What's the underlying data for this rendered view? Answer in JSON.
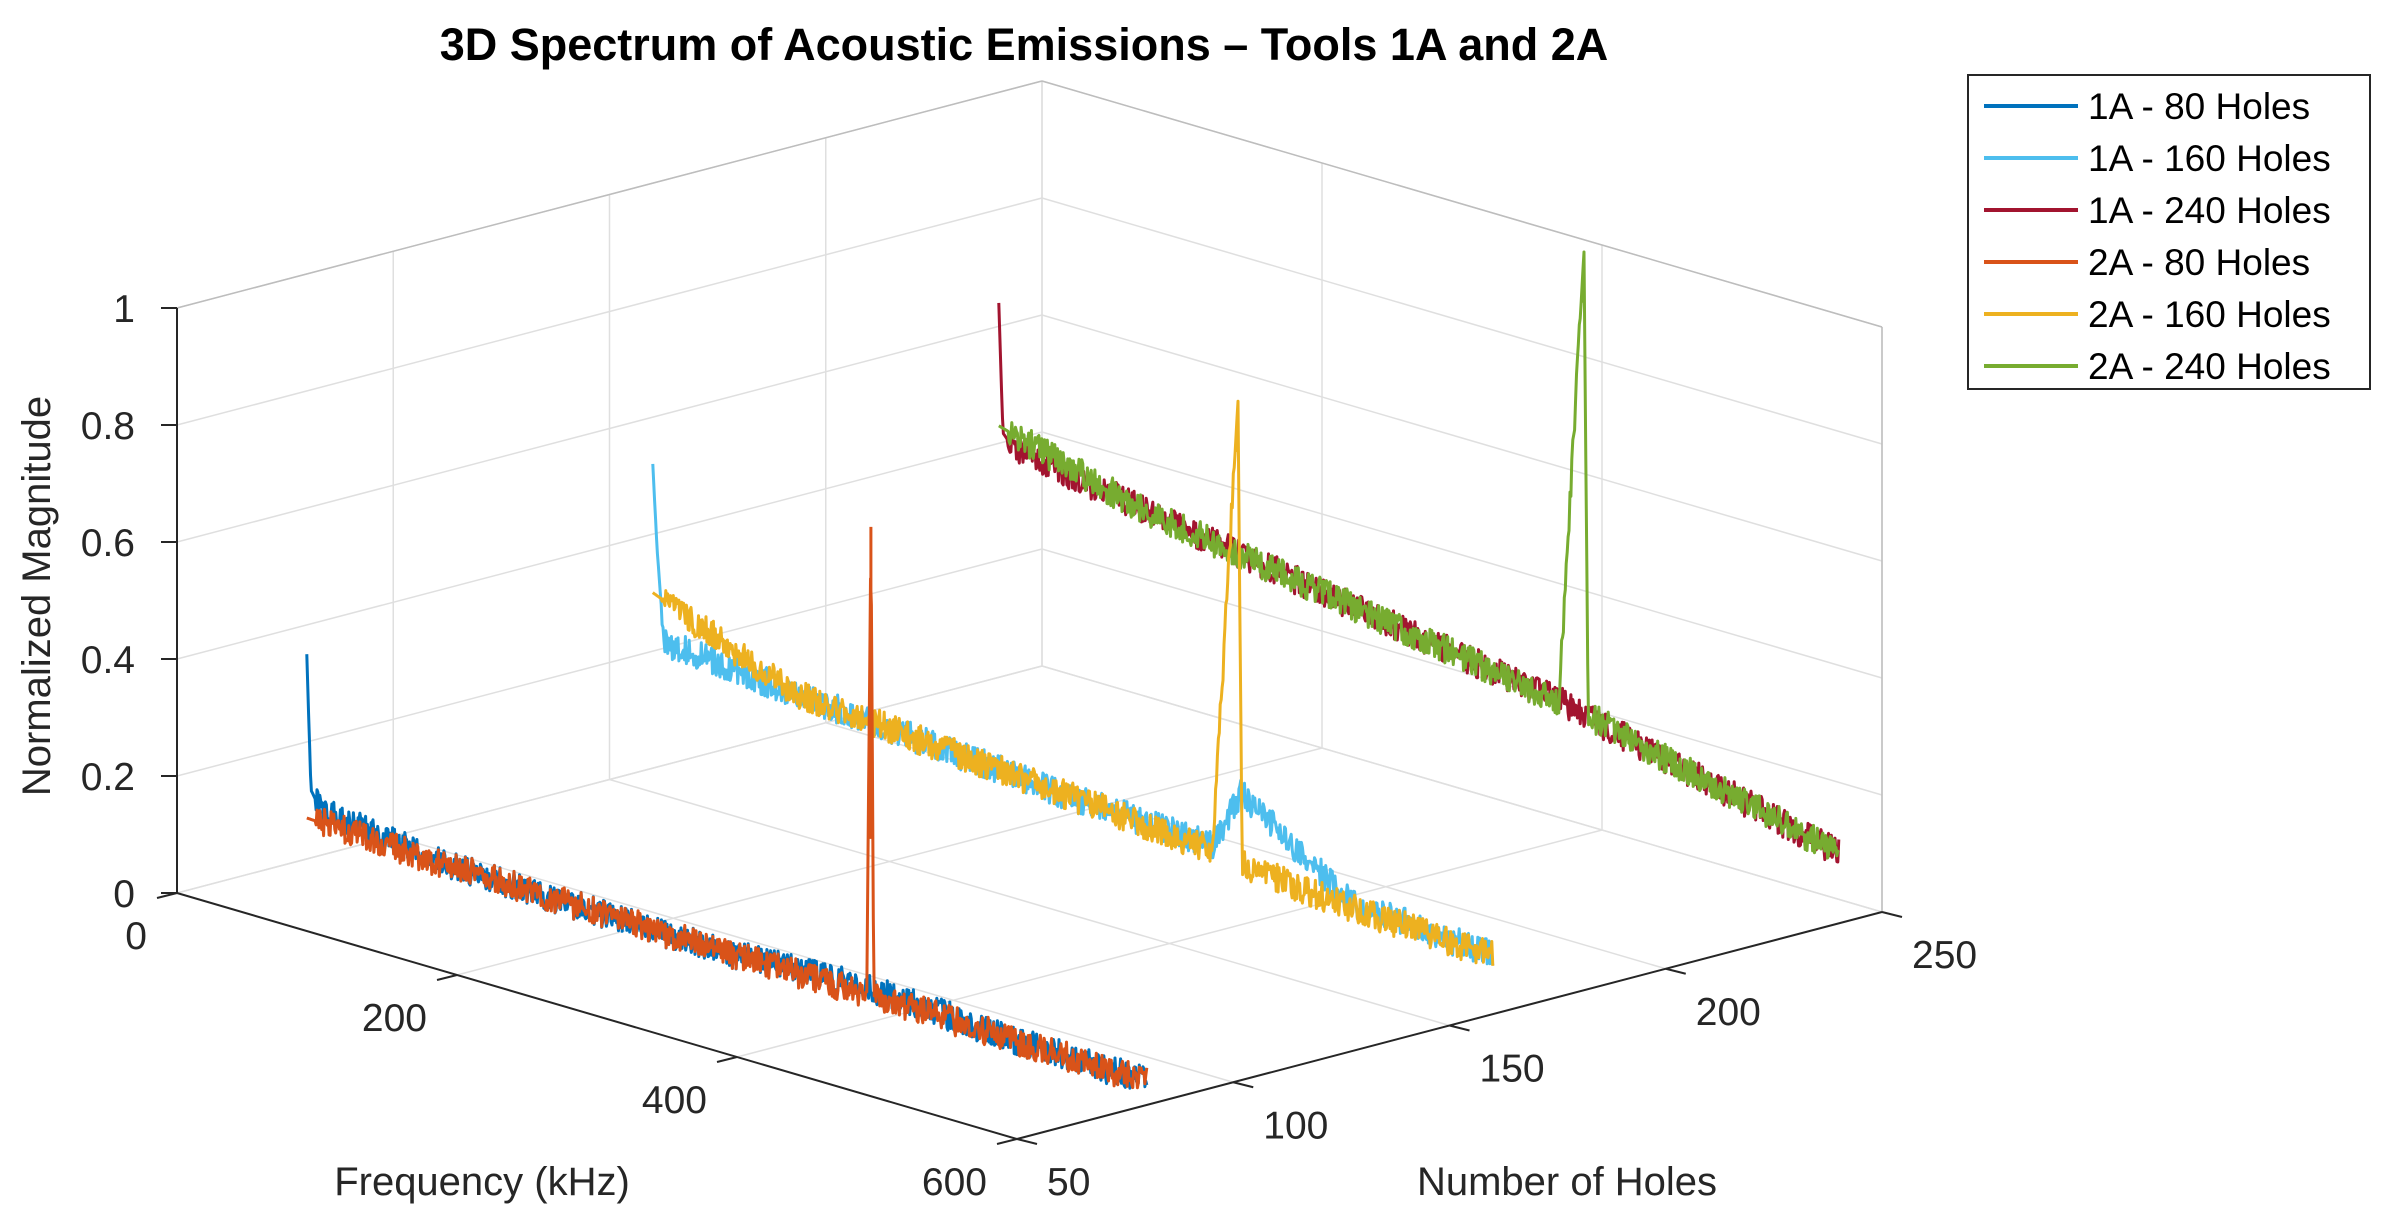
{
  "chart_data": {
    "type": "line",
    "projection": "3d",
    "title": "3D Spectrum of Acoustic Emissions – Tools 1A and 2A",
    "xlabel": "Frequency (kHz)",
    "ylabel": "Number of Holes",
    "zlabel": "Normalized Magnitude",
    "xlim": [
      0,
      600
    ],
    "ylim": [
      50,
      250
    ],
    "zlim": [
      0,
      1
    ],
    "xticks": [
      "0",
      "200",
      "400",
      "600"
    ],
    "yticks": [
      "50",
      "100",
      "150",
      "200",
      "250"
    ],
    "zticks": [
      "0",
      "0.2",
      "0.4",
      "0.6",
      "0.8",
      "1"
    ],
    "grid": true,
    "legend_position": "top-right outside",
    "series": [
      {
        "name": "1A - 80 Holes",
        "color": "#0072BD",
        "holes": 80,
        "spectrum": [
          [
            0,
            0.35
          ],
          [
            3,
            0.12
          ],
          [
            10,
            0.09
          ],
          [
            100,
            0.06
          ],
          [
            200,
            0.055
          ],
          [
            300,
            0.05
          ],
          [
            390,
            0.06
          ],
          [
            420,
            0.06
          ],
          [
            500,
            0.045
          ],
          [
            600,
            0.04
          ]
        ]
      },
      {
        "name": "1A - 160 Holes",
        "color": "#4DBEEE",
        "holes": 160,
        "spectrum": [
          [
            0,
            0.52
          ],
          [
            3,
            0.38
          ],
          [
            8,
            0.22
          ],
          [
            100,
            0.2
          ],
          [
            200,
            0.18
          ],
          [
            300,
            0.16
          ],
          [
            400,
            0.15
          ],
          [
            420,
            0.25
          ],
          [
            500,
            0.12
          ],
          [
            600,
            0.1
          ]
        ]
      },
      {
        "name": "1A - 240 Holes",
        "color": "#A2142F",
        "holes": 240,
        "spectrum": [
          [
            0,
            0.64
          ],
          [
            3,
            0.42
          ],
          [
            10,
            0.4
          ],
          [
            100,
            0.36
          ],
          [
            200,
            0.32
          ],
          [
            300,
            0.28
          ],
          [
            400,
            0.24
          ],
          [
            500,
            0.18
          ],
          [
            600,
            0.12
          ]
        ]
      },
      {
        "name": "2A - 80 Holes",
        "color": "#D95319",
        "holes": 80,
        "spectrum": [
          [
            0,
            0.07
          ],
          [
            100,
            0.06
          ],
          [
            200,
            0.055
          ],
          [
            300,
            0.05
          ],
          [
            400,
            0.05
          ],
          [
            403,
            0.85
          ],
          [
            405,
            0.05
          ],
          [
            500,
            0.045
          ],
          [
            600,
            0.04
          ]
        ]
      },
      {
        "name": "2A - 160 Holes",
        "color": "#EDB120",
        "holes": 160,
        "spectrum": [
          [
            0,
            0.3
          ],
          [
            100,
            0.2
          ],
          [
            200,
            0.18
          ],
          [
            300,
            0.16
          ],
          [
            400,
            0.14
          ],
          [
            418,
            0.92
          ],
          [
            421,
            0.13
          ],
          [
            500,
            0.11
          ],
          [
            600,
            0.1
          ]
        ]
      },
      {
        "name": "2A - 240 Holes",
        "color": "#77AC30",
        "holes": 240,
        "spectrum": [
          [
            0,
            0.43
          ],
          [
            100,
            0.36
          ],
          [
            200,
            0.32
          ],
          [
            300,
            0.28
          ],
          [
            400,
            0.24
          ],
          [
            418,
            1.02
          ],
          [
            421,
            0.23
          ],
          [
            500,
            0.18
          ],
          [
            600,
            0.12
          ]
        ]
      }
    ]
  }
}
